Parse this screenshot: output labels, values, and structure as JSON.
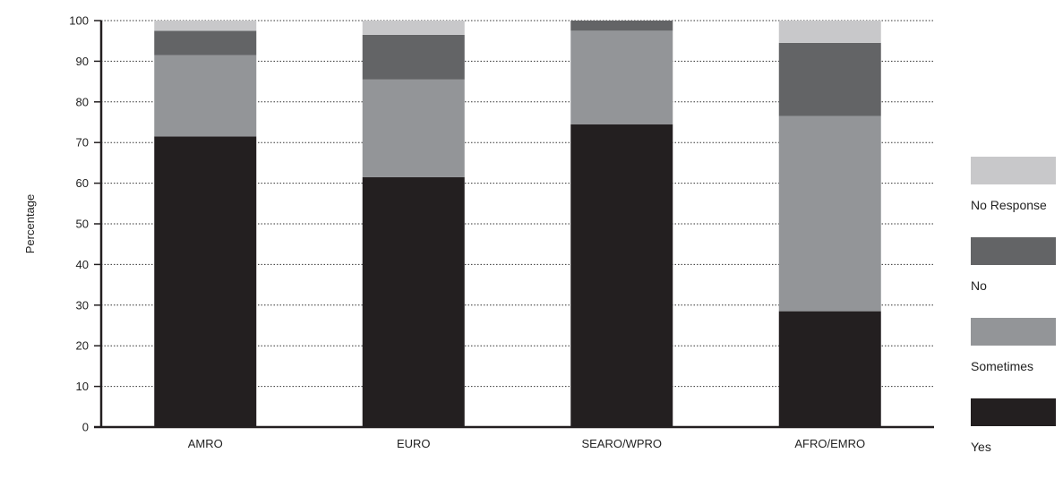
{
  "chart_data": {
    "type": "bar",
    "stacked": true,
    "title": "",
    "xlabel": "",
    "ylabel": "Percentage",
    "ylim": [
      0,
      100
    ],
    "yticks": [
      0,
      10,
      20,
      30,
      40,
      50,
      60,
      70,
      80,
      90,
      100
    ],
    "grid": "horizontal dotted",
    "legend_position": "right",
    "categories": [
      "AMRO",
      "EURO",
      "SEARO/WPRO",
      "AFRO/EMRO"
    ],
    "series": [
      {
        "name": "Yes",
        "color": "#231f20",
        "values": [
          71.5,
          61.5,
          74.5,
          28.5
        ]
      },
      {
        "name": "Sometimes",
        "color": "#939598",
        "values": [
          20,
          24,
          23,
          48
        ]
      },
      {
        "name": "No",
        "color": "#636466",
        "values": [
          6,
          11,
          2.5,
          18
        ]
      },
      {
        "name": "No Response",
        "color": "#c8c8ca",
        "values": [
          2.5,
          3.5,
          0,
          5.5
        ]
      }
    ]
  }
}
